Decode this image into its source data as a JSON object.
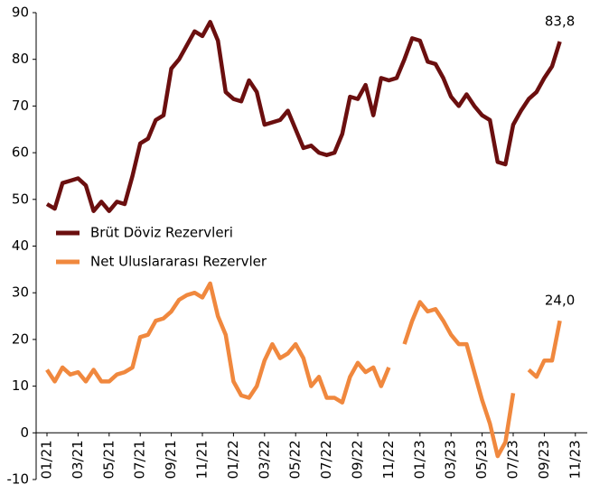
{
  "chart_data": {
    "type": "line",
    "categories": [
      "01/21",
      null,
      null,
      null,
      "03/21",
      null,
      null,
      null,
      "05/21",
      null,
      null,
      null,
      "07/21",
      null,
      null,
      null,
      "09/21",
      null,
      null,
      null,
      "11/21",
      null,
      null,
      null,
      "01/22",
      null,
      null,
      null,
      "03/22",
      null,
      null,
      null,
      "05/22",
      null,
      null,
      null,
      "07/22",
      null,
      null,
      null,
      "09/22",
      null,
      null,
      null,
      "11/22",
      null,
      null,
      null,
      "01/23",
      null,
      null,
      null,
      "03/23",
      null,
      null,
      null,
      "05/23",
      null,
      null,
      null,
      "07/23",
      null,
      null,
      null,
      "09/23",
      null,
      null,
      null,
      "11/23"
    ],
    "series": [
      {
        "name": "Brüt Döviz Rezervleri",
        "color": "#6b0f0f",
        "values": [
          49,
          48,
          53.5,
          54,
          54.5,
          53,
          47.5,
          49.5,
          47.5,
          49.5,
          49,
          55,
          62,
          63,
          67,
          68,
          78,
          80,
          83,
          86,
          85,
          88,
          84,
          73,
          71.5,
          71,
          75.5,
          73,
          66,
          66.5,
          67,
          69,
          65,
          61,
          61.5,
          60,
          59.5,
          60,
          64,
          72,
          71.5,
          74.5,
          68,
          76,
          75.5,
          76,
          80,
          84.5,
          84,
          79.5,
          79,
          76,
          72,
          70,
          72.5,
          70,
          68,
          67,
          58,
          57.5,
          66,
          69,
          71.5,
          73,
          76,
          78.5,
          83.8,
          null,
          null
        ],
        "value_labels": [
          null,
          null,
          null,
          null,
          null,
          null,
          null,
          null,
          null,
          null,
          null,
          null,
          null,
          null,
          null,
          null,
          null,
          null,
          null,
          null,
          null,
          null,
          null,
          null,
          null,
          null,
          null,
          null,
          null,
          null,
          null,
          null,
          null,
          null,
          null,
          null,
          null,
          null,
          null,
          null,
          null,
          null,
          null,
          null,
          null,
          null,
          null,
          null,
          null,
          null,
          null,
          null,
          null,
          null,
          null,
          null,
          null,
          null,
          null,
          null,
          null,
          null,
          null,
          null,
          null,
          null,
          "83,8",
          null,
          null
        ]
      },
      {
        "name": "Net Uluslararası Rezervler",
        "color": "#f0883e",
        "values": [
          13.5,
          11,
          14,
          12.5,
          13,
          11,
          13.5,
          11,
          11,
          12.5,
          13,
          14,
          20.5,
          21,
          24,
          24.5,
          26,
          28.5,
          29.5,
          30,
          29,
          32,
          25,
          21,
          11,
          8,
          7.5,
          10,
          15.5,
          19,
          16,
          17,
          19,
          16,
          10,
          12,
          7.5,
          7.5,
          6.5,
          12,
          15,
          13,
          14,
          10,
          14,
          null,
          19,
          24,
          28,
          26,
          26.5,
          24,
          21,
          19,
          19,
          13,
          7,
          2,
          -5,
          -2,
          8.5,
          null,
          13.5,
          12,
          15.5,
          15.5,
          24.0,
          null,
          null
        ],
        "value_labels": [
          null,
          null,
          null,
          null,
          null,
          null,
          null,
          null,
          null,
          null,
          null,
          null,
          null,
          null,
          null,
          null,
          null,
          null,
          null,
          null,
          null,
          null,
          null,
          null,
          null,
          null,
          null,
          null,
          null,
          null,
          null,
          null,
          null,
          null,
          null,
          null,
          null,
          null,
          null,
          null,
          null,
          null,
          null,
          null,
          null,
          null,
          null,
          null,
          null,
          null,
          null,
          null,
          null,
          null,
          null,
          null,
          null,
          null,
          null,
          null,
          null,
          null,
          null,
          null,
          null,
          null,
          "24,0",
          null,
          null
        ]
      }
    ],
    "ylim": [
      -10,
      90
    ],
    "yticks": [
      -10,
      0,
      10,
      20,
      30,
      40,
      50,
      60,
      70,
      80,
      90
    ],
    "grid": false,
    "legend": "left"
  }
}
